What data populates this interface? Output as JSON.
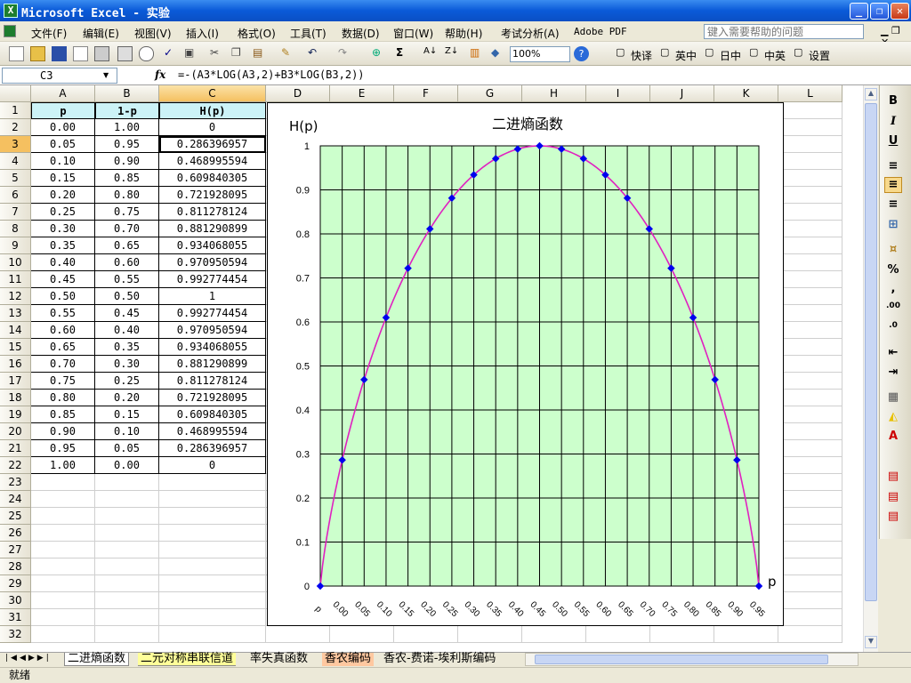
{
  "window": {
    "title": "Microsoft Excel - 实验",
    "min_label": "_",
    "max_label": "❐",
    "close_label": "✕"
  },
  "menu": {
    "items": [
      "文件(F)",
      "编辑(E)",
      "视图(V)",
      "插入(I)",
      "格式(O)",
      "工具(T)",
      "数据(D)",
      "窗口(W)",
      "帮助(H)",
      "考试分析(A)",
      "Adobe PDF"
    ],
    "help_placeholder": "键入需要帮助的问题"
  },
  "toolbar": {
    "zoom": "100%",
    "quick_translate": "快译",
    "en_cn": "英中",
    "jp_cn": "日中",
    "cn_en": "中英",
    "settings": "设置"
  },
  "formula_bar": {
    "cell_ref": "C3",
    "fx": "fx",
    "formula": "=-(A3*LOG(A3,2)+B3*LOG(B3,2))"
  },
  "columns": [
    "A",
    "B",
    "C",
    "D",
    "E",
    "F",
    "G",
    "H",
    "I",
    "J",
    "K",
    "L"
  ],
  "rows": [
    "1",
    "2",
    "3",
    "4",
    "5",
    "6",
    "7",
    "8",
    "9",
    "10",
    "11",
    "12",
    "13",
    "14",
    "15",
    "16",
    "17",
    "18",
    "19",
    "20",
    "21",
    "22",
    "23",
    "24",
    "25",
    "26",
    "27",
    "28",
    "29",
    "30",
    "31",
    "32"
  ],
  "table": {
    "headers": [
      "p",
      "1-p",
      "H(p)"
    ],
    "rows": [
      [
        "0.00",
        "1.00",
        "0"
      ],
      [
        "0.05",
        "0.95",
        "0.286396957"
      ],
      [
        "0.10",
        "0.90",
        "0.468995594"
      ],
      [
        "0.15",
        "0.85",
        "0.609840305"
      ],
      [
        "0.20",
        "0.80",
        "0.721928095"
      ],
      [
        "0.25",
        "0.75",
        "0.811278124"
      ],
      [
        "0.30",
        "0.70",
        "0.881290899"
      ],
      [
        "0.35",
        "0.65",
        "0.934068055"
      ],
      [
        "0.40",
        "0.60",
        "0.970950594"
      ],
      [
        "0.45",
        "0.55",
        "0.992774454"
      ],
      [
        "0.50",
        "0.50",
        "1"
      ],
      [
        "0.55",
        "0.45",
        "0.992774454"
      ],
      [
        "0.60",
        "0.40",
        "0.970950594"
      ],
      [
        "0.65",
        "0.35",
        "0.934068055"
      ],
      [
        "0.70",
        "0.30",
        "0.881290899"
      ],
      [
        "0.75",
        "0.25",
        "0.811278124"
      ],
      [
        "0.80",
        "0.20",
        "0.721928095"
      ],
      [
        "0.85",
        "0.15",
        "0.609840305"
      ],
      [
        "0.90",
        "0.10",
        "0.468995594"
      ],
      [
        "0.95",
        "0.05",
        "0.286396957"
      ],
      [
        "1.00",
        "0.00",
        "0"
      ]
    ]
  },
  "chart_data": {
    "type": "line",
    "title": "二进熵函数",
    "ylabel": "H(p)",
    "xlabel": "p",
    "x_tick_labels": [
      "p",
      "0.00",
      "0.05",
      "0.10",
      "0.15",
      "0.20",
      "0.25",
      "0.30",
      "0.35",
      "0.40",
      "0.45",
      "0.50",
      "0.55",
      "0.60",
      "0.65",
      "0.70",
      "0.75",
      "0.80",
      "0.85",
      "0.90",
      "0.95"
    ],
    "y_ticks": [
      "0",
      "0.1",
      "0.2",
      "0.3",
      "0.4",
      "0.5",
      "0.6",
      "0.7",
      "0.8",
      "0.9",
      "1"
    ],
    "ylim": [
      0,
      1
    ],
    "x": [
      0.0,
      0.05,
      0.1,
      0.15,
      0.2,
      0.25,
      0.3,
      0.35,
      0.4,
      0.45,
      0.5,
      0.55,
      0.6,
      0.65,
      0.7,
      0.75,
      0.8,
      0.85,
      0.9,
      0.95,
      1.0
    ],
    "values": [
      0,
      0.286396957,
      0.468995594,
      0.609840305,
      0.721928095,
      0.811278124,
      0.881290899,
      0.934068055,
      0.970950594,
      0.992774454,
      1,
      0.992774454,
      0.970950594,
      0.934068055,
      0.881290899,
      0.811278124,
      0.721928095,
      0.609840305,
      0.468995594,
      0.286396957,
      0
    ],
    "grid": true,
    "plot_bg": "#ccffcc",
    "line_color": "#e020c0",
    "marker_color": "#0000ee"
  },
  "sheet_tabs": [
    "二进熵函数",
    "二元对称串联信道",
    "率失真函数",
    "香农编码",
    "香农-费诺-埃利斯编码"
  ],
  "status": "就绪"
}
